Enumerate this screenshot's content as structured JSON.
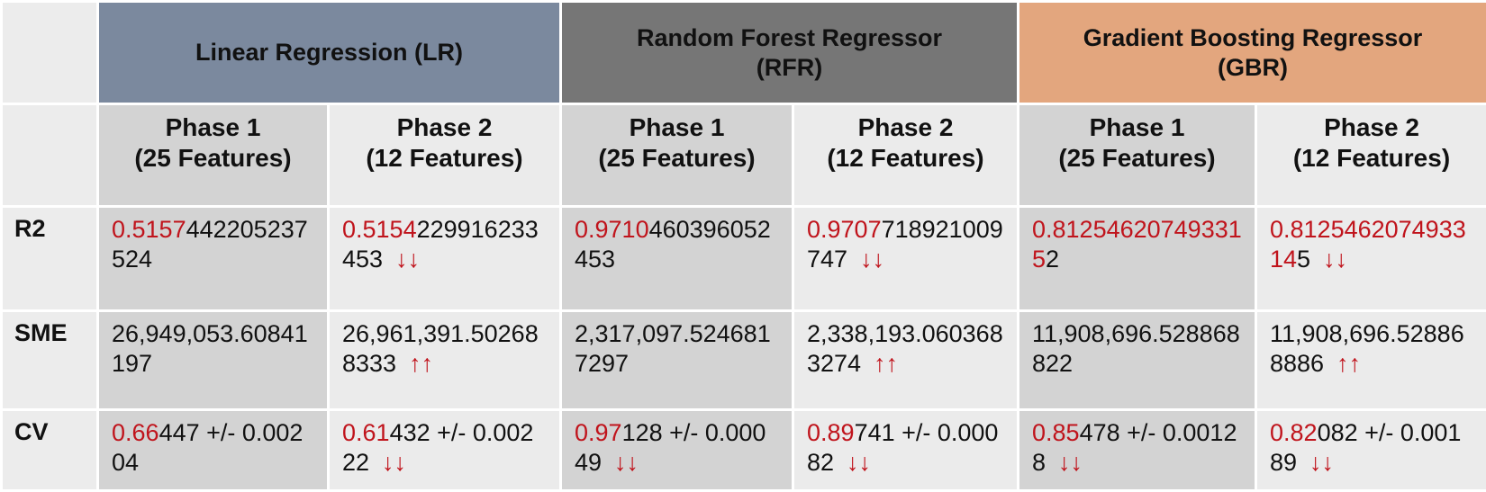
{
  "colors": {
    "lr_header": "#7b899e",
    "rfr_header": "#767676",
    "gbr_header": "#e3a67e",
    "highlight": "#c0141c",
    "cell_dark": "#d3d3d3",
    "cell_light": "#ebebeb"
  },
  "models": [
    {
      "name": "Linear Regression (LR)"
    },
    {
      "name": "Random Forest Regressor (RFR)"
    },
    {
      "name": "Gradient Boosting Regressor (GBR)"
    }
  ],
  "phases": [
    {
      "name": "Phase 1",
      "features": "(25 Features)"
    },
    {
      "name": "Phase 2",
      "features": "(12 Features)"
    },
    {
      "name": "Phase 1",
      "features": "(25 Features)"
    },
    {
      "name": "Phase 2",
      "features": "(12 Features)"
    },
    {
      "name": "Phase 1",
      "features": "(25 Features)"
    },
    {
      "name": "Phase 2",
      "features": "(12 Features)"
    }
  ],
  "rows": [
    {
      "label": "R2",
      "cells": [
        {
          "hl": "0.5157",
          "rest": "442205237524",
          "arrow": ""
        },
        {
          "hl": "0.5154",
          "rest": "229916233453",
          "arrow": "↓↓"
        },
        {
          "hl": "0.9710",
          "rest": "460396052453",
          "arrow": ""
        },
        {
          "hl": "0.9707",
          "rest": "718921009747",
          "arrow": "↓↓"
        },
        {
          "hl": "0.812546207493315",
          "rest": "2",
          "arrow": ""
        },
        {
          "hl": "0.812546207493314",
          "rest": "5",
          "arrow": "↓↓"
        }
      ]
    },
    {
      "label": "SME",
      "cells": [
        {
          "hl": "",
          "rest": "26,949,053.60841197",
          "arrow": ""
        },
        {
          "hl": "",
          "rest": "26,961,391.502688333",
          "arrow": "↑↑"
        },
        {
          "hl": "",
          "rest": "2,317,097.5246817297",
          "arrow": ""
        },
        {
          "hl": "",
          "rest": "2,338,193.0603683274",
          "arrow": "↑↑"
        },
        {
          "hl": "",
          "rest": "11,908,696.528868822",
          "arrow": ""
        },
        {
          "hl": "",
          "rest": "11,908,696.528868886",
          "arrow": "↑↑"
        }
      ]
    },
    {
      "label": "CV",
      "cells": [
        {
          "hl": "0.66",
          "rest": "447 +/- 0.00204",
          "arrow": ""
        },
        {
          "hl": "0.61",
          "rest": "432 +/- 0.00222",
          "arrow": "↓↓"
        },
        {
          "hl": "0.97",
          "rest": "128 +/- 0.00049",
          "arrow": "↓↓"
        },
        {
          "hl": "0.89",
          "rest": "741 +/- 0.00082",
          "arrow": "↓↓"
        },
        {
          "hl": "0.85",
          "rest": "478 +/- 0.00128",
          "arrow": "↓↓"
        },
        {
          "hl": "0.82",
          "rest": "082 +/- 0.00189",
          "arrow": "↓↓"
        }
      ]
    }
  ]
}
